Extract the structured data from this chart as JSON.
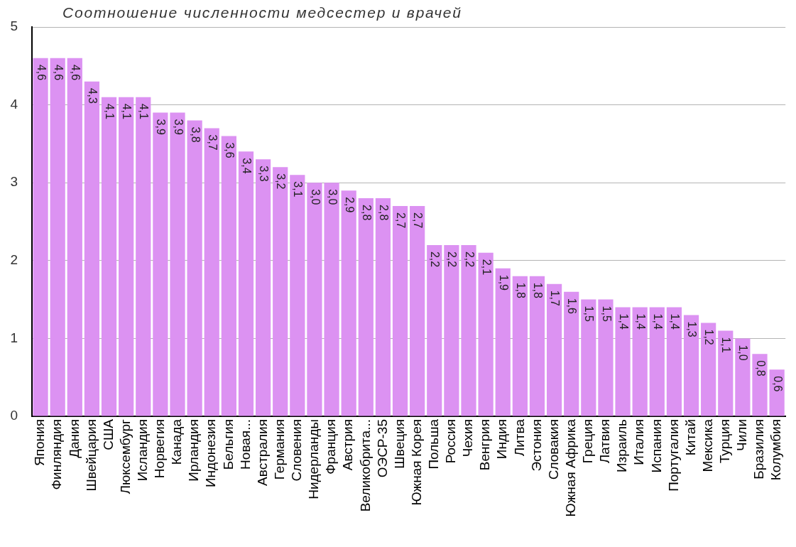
{
  "chart_data": {
    "type": "bar",
    "title": "Соотношение численности медсестер и врачей",
    "categories": [
      "Япония",
      "Финляндия",
      "Дания",
      "Швейцария",
      "США",
      "Люксембург",
      "Исландия",
      "Норвегия",
      "Канада",
      "Ирландия",
      "Индонезия",
      "Бельгия",
      "Новая...",
      "Австралия",
      "Германия",
      "Словения",
      "Нидерланды",
      "Франция",
      "Австрия",
      "Великобрита...",
      "ОЭСР-35",
      "Швеция",
      "Южная Корея",
      "Польша",
      "Россия",
      "Чехия",
      "Венгрия",
      "Индия",
      "Литва",
      "Эстония",
      "Словакия",
      "Южная Африка",
      "Греция",
      "Латвия",
      "Израиль",
      "Италия",
      "Испания",
      "Португалия",
      "Китай",
      "Мексика",
      "Турция",
      "Чили",
      "Бразилия",
      "Колумбия"
    ],
    "values": [
      4.6,
      4.6,
      4.6,
      4.3,
      4.1,
      4.1,
      4.1,
      3.9,
      3.9,
      3.8,
      3.7,
      3.6,
      3.4,
      3.3,
      3.2,
      3.1,
      3.0,
      3.0,
      2.9,
      2.8,
      2.8,
      2.7,
      2.7,
      2.2,
      2.2,
      2.2,
      2.1,
      1.9,
      1.8,
      1.8,
      1.7,
      1.6,
      1.5,
      1.5,
      1.4,
      1.4,
      1.4,
      1.4,
      1.3,
      1.2,
      1.1,
      1.0,
      0.8,
      0.6
    ],
    "value_labels": [
      "4,6",
      "4,6",
      "4,6",
      "4,3",
      "4,1",
      "4,1",
      "4,1",
      "3,9",
      "3,9",
      "3,8",
      "3,7",
      "3,6",
      "3,4",
      "3,3",
      "3,2",
      "3,1",
      "3,0",
      "3,0",
      "2,9",
      "2,8",
      "2,8",
      "2,7",
      "2,7",
      "2,2",
      "2,2",
      "2,2",
      "2,1",
      "1,9",
      "1,8",
      "1,8",
      "1,7",
      "1,6",
      "1,5",
      "1,5",
      "1,4",
      "1,4",
      "1,4",
      "1,4",
      "1,3",
      "1,2",
      "1,1",
      "1,0",
      "0,8",
      "0,6"
    ],
    "color": "#dc92f2",
    "ylim": [
      0,
      5
    ],
    "yticks": [
      0,
      1,
      2,
      3,
      4,
      5
    ],
    "grid": "y"
  }
}
